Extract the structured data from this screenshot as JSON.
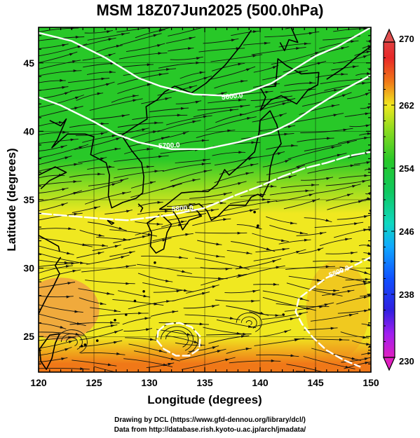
{
  "title": "MSM 18Z07Jun2025 (500.0hPa)",
  "axes": {
    "xlabel": "Longitude (degrees)",
    "ylabel": "Latitude  (degrees)",
    "xticks": [
      "120",
      "125",
      "130",
      "135",
      "140",
      "145",
      "150"
    ],
    "yticks": [
      "25",
      "30",
      "35",
      "40",
      "45"
    ]
  },
  "colorbar": {
    "min_label": "230",
    "max_label": "270",
    "labels": [
      "270",
      "262",
      "254",
      "246",
      "238",
      "230"
    ]
  },
  "contour_labels": [
    "5600.0",
    "5700.0",
    "5800.0",
    "5800.0"
  ],
  "credits": {
    "line1": "Drawing by DCL (https://www.gfd-dennou.org/library/dcl/)",
    "line2": "Data from http://database.rish.kyoto-u.ac.jp/arch/jmadata/"
  },
  "chart_data": {
    "type": "heatmap",
    "title": "MSM 18Z07Jun2025 (500.0hPa)",
    "xlabel": "Longitude (degrees)",
    "ylabel": "Latitude  (degrees)",
    "xlim": [
      120,
      150
    ],
    "ylim": [
      22.4,
      47.6
    ],
    "colorbar_range": [
      230,
      270
    ],
    "temperature_field_K": {
      "by_latitude": [
        {
          "lat": 47,
          "value": 256
        },
        {
          "lat": 44,
          "value": 257
        },
        {
          "lat": 41,
          "value": 258
        },
        {
          "lat": 38,
          "value": 259
        },
        {
          "lat": 36,
          "value": 262
        },
        {
          "lat": 34,
          "value": 264
        },
        {
          "lat": 31,
          "value": 265
        },
        {
          "lat": 28,
          "value": 265
        },
        {
          "lat": 25,
          "value": 265
        },
        {
          "lat": 23,
          "value": 266
        }
      ]
    },
    "contours_gph_m": [
      {
        "level": 5600.0,
        "points": [
          [
            120,
            47.2
          ],
          [
            123,
            46.6
          ],
          [
            126,
            45.4
          ],
          [
            129,
            43.9
          ],
          [
            131,
            43.3
          ],
          [
            134,
            42.7
          ],
          [
            137,
            42.6
          ],
          [
            139,
            42.9
          ],
          [
            141,
            43.5
          ],
          [
            143,
            44.5
          ],
          [
            145,
            45.5
          ],
          [
            147,
            46.2
          ],
          [
            150,
            47.6
          ]
        ]
      },
      {
        "level": 5700.0,
        "points": [
          [
            120,
            42.5
          ],
          [
            122,
            41.9
          ],
          [
            125,
            40.7
          ],
          [
            127,
            39.8
          ],
          [
            129,
            39.2
          ],
          [
            132,
            38.7
          ],
          [
            135,
            38.7
          ],
          [
            138,
            39.2
          ],
          [
            141,
            39.9
          ],
          [
            143,
            40.7
          ],
          [
            145,
            41.8
          ],
          [
            147,
            42.8
          ],
          [
            150,
            44.1
          ]
        ]
      },
      {
        "level": 5800.0,
        "points": [
          [
            120,
            34.0
          ],
          [
            123,
            33.8
          ],
          [
            126,
            33.6
          ],
          [
            128,
            33.5
          ],
          [
            130,
            33.7
          ],
          [
            132,
            33.9
          ],
          [
            135,
            34.4
          ],
          [
            138,
            35.4
          ],
          [
            140,
            36.0
          ],
          [
            142,
            36.7
          ],
          [
            144,
            37.3
          ],
          [
            146,
            37.7
          ],
          [
            148,
            38.2
          ],
          [
            150,
            38.5
          ]
        ]
      },
      {
        "level": 5800.0,
        "points": [
          [
            150,
            30.8
          ],
          [
            148,
            30.0
          ],
          [
            146,
            29.3
          ],
          [
            145,
            28.7
          ],
          [
            143.5,
            27.8
          ],
          [
            143.2,
            26.8
          ],
          [
            143.8,
            25.9
          ],
          [
            144.8,
            24.9
          ],
          [
            146,
            24.0
          ],
          [
            147.5,
            23.3
          ],
          [
            149,
            22.8
          ]
        ]
      },
      {
        "level": 5880.0,
        "points": [
          [
            130.8,
            25.4
          ],
          [
            131.5,
            25.9
          ],
          [
            132.7,
            26.0
          ],
          [
            133.8,
            25.7
          ],
          [
            134.6,
            25.0
          ],
          [
            134.5,
            24.1
          ],
          [
            133.6,
            23.6
          ],
          [
            132.4,
            23.6
          ],
          [
            131.3,
            24.1
          ],
          [
            130.7,
            24.7
          ],
          [
            130.8,
            25.4
          ]
        ]
      }
    ],
    "grid": true
  }
}
